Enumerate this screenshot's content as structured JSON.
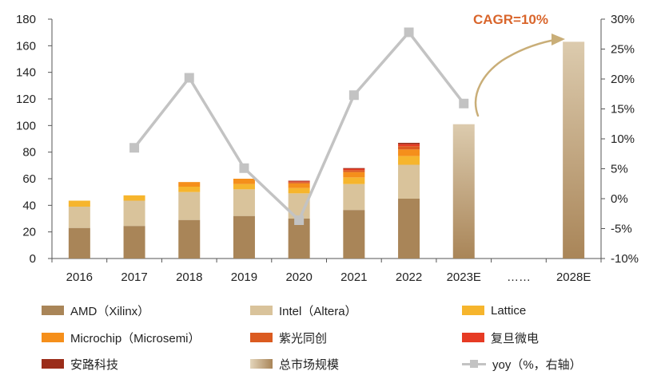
{
  "chart_data": {
    "type": "bar",
    "stacked": true,
    "categories": [
      "2016",
      "2017",
      "2018",
      "2019",
      "2020",
      "2021",
      "2022",
      "2023E",
      "……",
      "2028E"
    ],
    "y_left_ticks": [
      "0",
      "20",
      "40",
      "60",
      "80",
      "100",
      "120",
      "140",
      "160",
      "180"
    ],
    "y_right_ticks": [
      "-10%",
      "-5%",
      "0%",
      "5%",
      "10%",
      "15%",
      "20%",
      "25%",
      "30%"
    ],
    "ylim_left": [
      0,
      180
    ],
    "ylim_right": [
      -10,
      30
    ],
    "series": [
      {
        "name": "AMD（Xilinx）",
        "color": "#a98558",
        "values": [
          23,
          24.5,
          29,
          32,
          30,
          36.5,
          45,
          null,
          null,
          null
        ]
      },
      {
        "name": "Intel（Altera）",
        "color": "#d9c39b",
        "values": [
          16,
          19,
          21,
          20,
          19,
          19.5,
          25.5,
          null,
          null,
          null
        ]
      },
      {
        "name": "Lattice",
        "color": "#f6b52d",
        "values": [
          4.5,
          4,
          4,
          4,
          4,
          5,
          6.5,
          null,
          null,
          null
        ]
      },
      {
        "name": "Microchip（Microsemi）",
        "color": "#f58f1b",
        "values": [
          0,
          0,
          3.5,
          4,
          3.5,
          4,
          5,
          null,
          null,
          null
        ]
      },
      {
        "name": "紫光同创",
        "color": "#db5b20",
        "values": [
          0,
          0,
          0,
          0,
          1,
          1.5,
          2.5,
          null,
          null,
          null
        ]
      },
      {
        "name": "复旦微电",
        "color": "#e63b24",
        "values": [
          0,
          0,
          0,
          0,
          0.5,
          1,
          1.5,
          null,
          null,
          null
        ]
      },
      {
        "name": "安路科技",
        "color": "#9b2d1a",
        "values": [
          0,
          0,
          0,
          0,
          0.5,
          0.5,
          1,
          null,
          null,
          null
        ]
      },
      {
        "name": "总市场规模",
        "color": "#c9b086",
        "gradient": true,
        "values": [
          null,
          null,
          null,
          null,
          null,
          null,
          null,
          101,
          null,
          163
        ]
      }
    ],
    "line": {
      "name": "yoy（%，右轴）",
      "axis": "right",
      "color": "#c3c3c3",
      "values": [
        null,
        8.5,
        20.2,
        5.1,
        -3.6,
        17.3,
        27.8,
        15.9,
        null,
        null
      ]
    },
    "annotation": "CAGR=10%",
    "legend_position": "bottom",
    "grid": false
  }
}
